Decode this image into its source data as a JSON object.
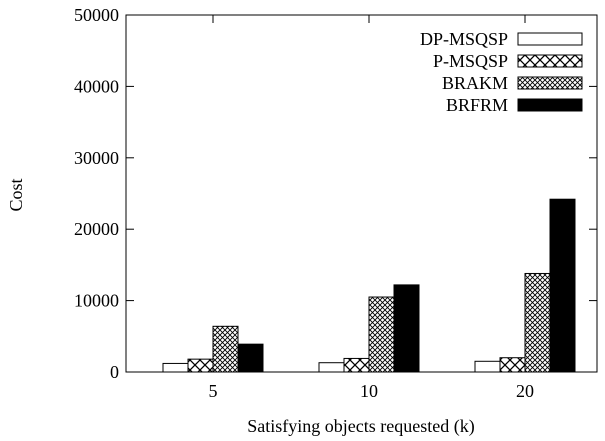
{
  "chart_data": {
    "type": "bar",
    "xlabel": "Satisfying objects requested (k)",
    "ylabel": "Cost",
    "ylim": [
      0,
      50000
    ],
    "yticks": [
      0,
      10000,
      20000,
      30000,
      40000,
      50000
    ],
    "categories": [
      "5",
      "10",
      "20"
    ],
    "legend_position": "top-right",
    "grid": false,
    "series": [
      {
        "name": "DP-MSQSP",
        "pattern": "white",
        "values": [
          1200,
          1300,
          1500
        ]
      },
      {
        "name": "P-MSQSP",
        "pattern": "crosshatch",
        "values": [
          1800,
          1900,
          2000
        ]
      },
      {
        "name": "BRAKM",
        "pattern": "dense-diamond",
        "values": [
          6400,
          10500,
          13800
        ]
      },
      {
        "name": "BRFRM",
        "pattern": "solid-black",
        "values": [
          3900,
          12200,
          24200
        ]
      }
    ]
  }
}
